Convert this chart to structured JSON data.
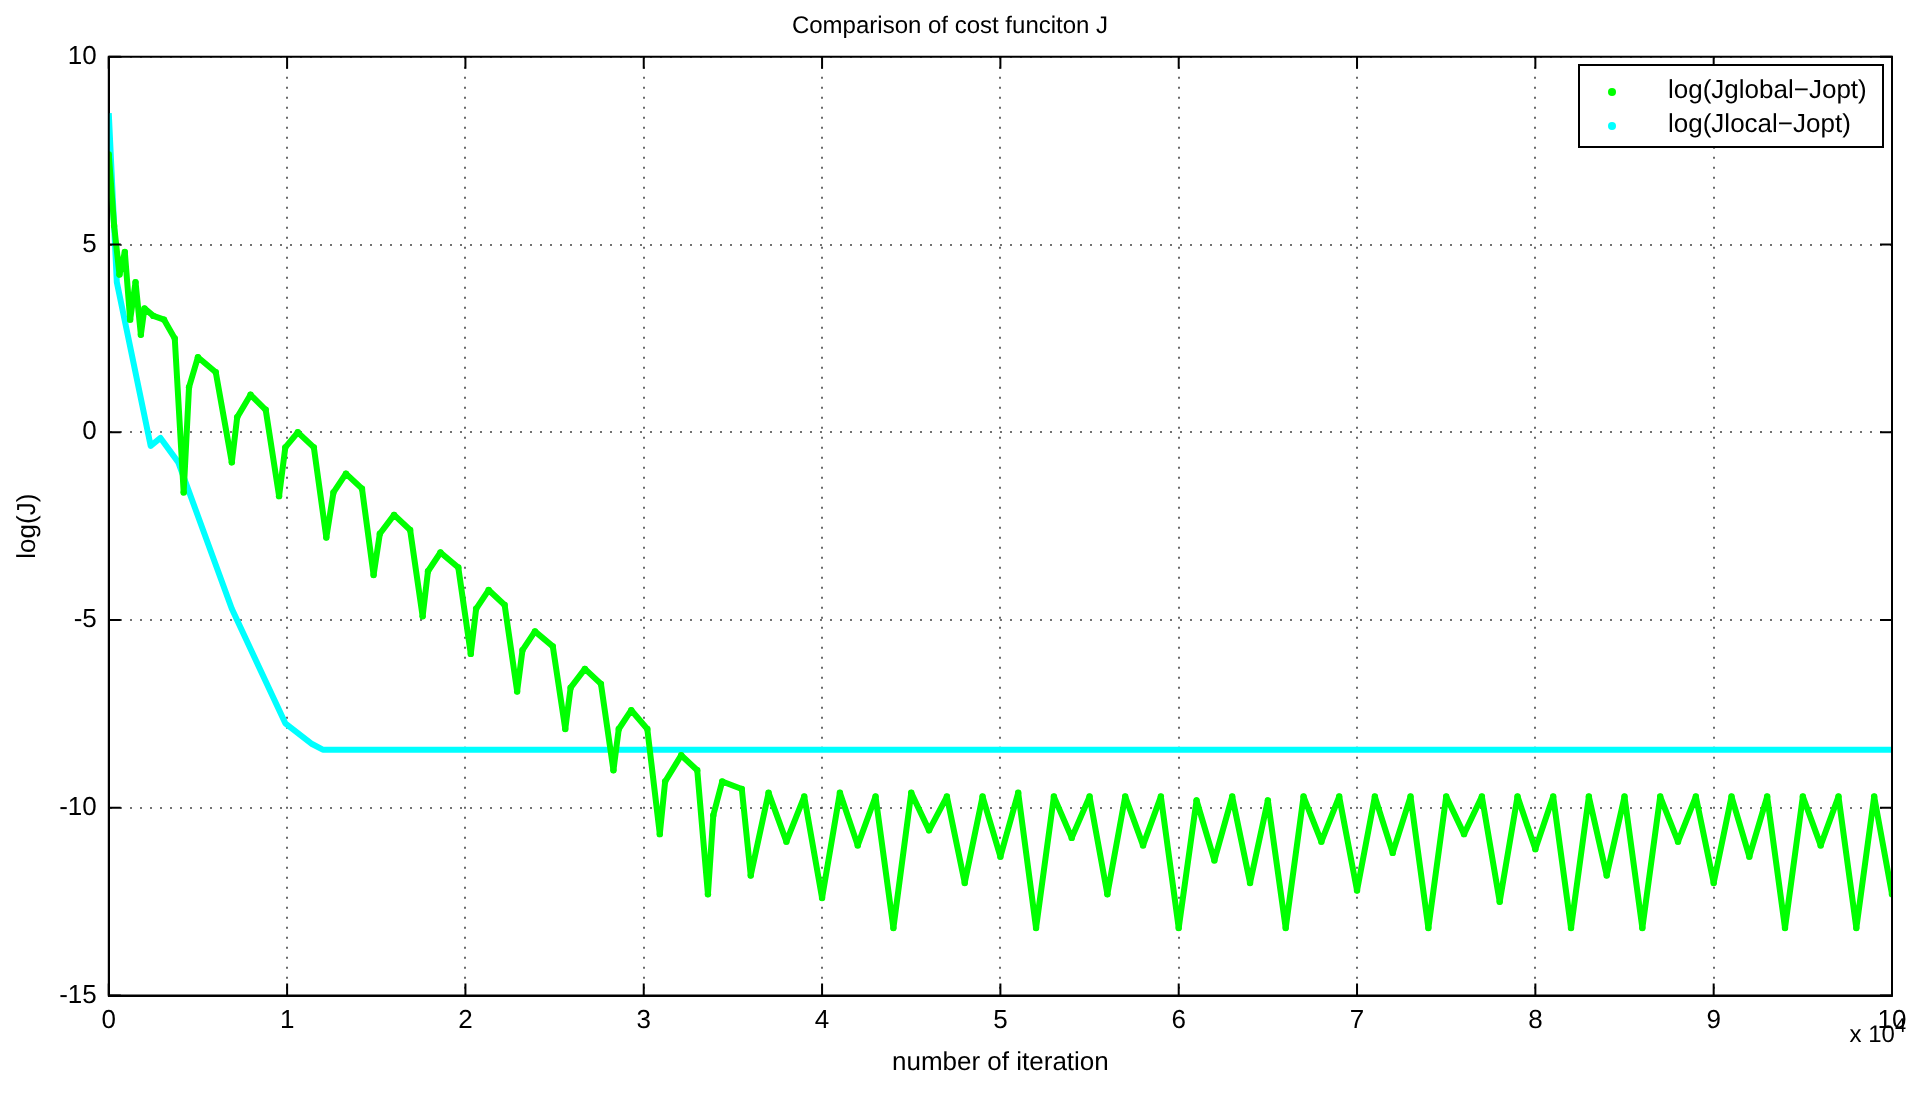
{
  "chart_data": {
    "type": "line",
    "title": "Comparison of cost funciton J",
    "xlabel": "number of iteration",
    "ylabel": "log(J)",
    "annotations": [
      "x 10$^{4}$"
    ],
    "xlim": [
      0,
      10
    ],
    "xticks": [
      0,
      1,
      2,
      3,
      4,
      5,
      6,
      7,
      8,
      9,
      10
    ],
    "ylim": [
      -15,
      10
    ],
    "yticks": [
      -15,
      -10,
      -5,
      0,
      5,
      10
    ],
    "grid": true,
    "legend": "top right",
    "marker": "circle",
    "line_style": "solid",
    "series": [
      {
        "name": "log(Jglobal−Jopt)",
        "color": "#00ff00",
        "x": [
          0,
          0.03,
          0.06,
          0.09,
          0.12,
          0.15,
          0.18,
          0.2,
          0.25,
          0.31,
          0.37,
          0.42,
          0.45,
          0.5,
          0.6,
          0.69,
          0.72,
          0.795,
          0.88,
          0.955,
          0.99,
          1.06,
          1.15,
          1.22,
          1.26,
          1.33,
          1.42,
          1.485,
          1.52,
          1.6,
          1.69,
          1.76,
          1.79,
          1.86,
          1.96,
          2.03,
          2.06,
          2.13,
          2.22,
          2.29,
          2.32,
          2.39,
          2.49,
          2.56,
          2.59,
          2.67,
          2.76,
          2.83,
          2.86,
          2.93,
          3.02,
          3.09,
          3.12,
          3.21,
          3.3,
          3.36,
          3.39,
          3.44,
          3.55,
          3.6,
          3.7,
          3.8,
          3.9,
          4.0,
          4.1,
          4.2,
          4.3,
          4.4,
          4.5,
          4.6,
          4.7,
          4.8,
          4.9,
          5.0,
          5.1,
          5.2,
          5.3,
          5.4,
          5.5,
          5.6,
          5.7,
          5.8,
          5.9,
          6.0,
          6.1,
          6.2,
          6.3,
          6.4,
          6.5,
          6.6,
          6.7,
          6.8,
          6.9,
          7.0,
          7.1,
          7.2,
          7.3,
          7.4,
          7.5,
          7.6,
          7.7,
          7.8,
          7.9,
          8.0,
          8.1,
          8.2,
          8.3,
          8.4,
          8.5,
          8.6,
          8.7,
          8.8,
          8.9,
          9.0,
          9.1,
          9.2,
          9.3,
          9.4,
          9.5,
          9.6,
          9.7,
          9.8,
          9.9,
          10.0
        ],
        "values": [
          7.4,
          5.5,
          4.2,
          4.8,
          3.0,
          4.0,
          2.6,
          3.3,
          3.1,
          3.0,
          2.5,
          -1.6,
          1.2,
          2.0,
          1.6,
          -0.8,
          0.4,
          1.0,
          0.6,
          -1.7,
          -0.4,
          0,
          -0.4,
          -2.8,
          -1.6,
          -1.1,
          -1.5,
          -3.8,
          -2.7,
          -2.2,
          -2.6,
          -4.9,
          -3.7,
          -3.2,
          -3.6,
          -5.9,
          -4.7,
          -4.2,
          -4.6,
          -6.9,
          -5.8,
          -5.3,
          -5.7,
          -7.9,
          -6.8,
          -6.3,
          -6.7,
          -9.0,
          -7.9,
          -7.4,
          -7.9,
          -10.7,
          -9.3,
          -8.6,
          -9.0,
          -12.3,
          -10.2,
          -9.3,
          -9.5,
          -11.8,
          -9.6,
          -10.9,
          -9.7,
          -12.4,
          -9.6,
          -11.0,
          -9.7,
          -13.2,
          -9.6,
          -10.6,
          -9.7,
          -12.0,
          -9.7,
          -11.3,
          -9.6,
          -13.2,
          -9.7,
          -10.8,
          -9.7,
          -12.3,
          -9.7,
          -11.0,
          -9.7,
          -13.2,
          -9.8,
          -11.4,
          -9.7,
          -12.0,
          -9.8,
          -13.2,
          -9.7,
          -10.9,
          -9.7,
          -12.2,
          -9.7,
          -11.2,
          -9.7,
          -13.2,
          -9.7,
          -10.7,
          -9.7,
          -12.5,
          -9.7,
          -11.1,
          -9.7,
          -13.2,
          -9.7,
          -11.8,
          -9.7,
          -13.2,
          -9.7,
          -10.9,
          -9.7,
          -12.0,
          -9.7,
          -11.3,
          -9.7,
          -13.2,
          -9.7,
          -11.0,
          -9.7,
          -13.2,
          -9.7,
          -12.3
        ]
      },
      {
        "name": "log(Jlocal−Jopt)",
        "color": "#00ffff",
        "marker": "none",
        "x": [
          0,
          0.045,
          0.235,
          0.29,
          0.39,
          0.69,
          0.99,
          1.14,
          1.2,
          10
        ],
        "values": [
          8.5,
          4.0,
          -0.36,
          -0.15,
          -0.8,
          -4.7,
          -7.75,
          -8.3,
          -8.45,
          -8.45
        ]
      }
    ]
  }
}
